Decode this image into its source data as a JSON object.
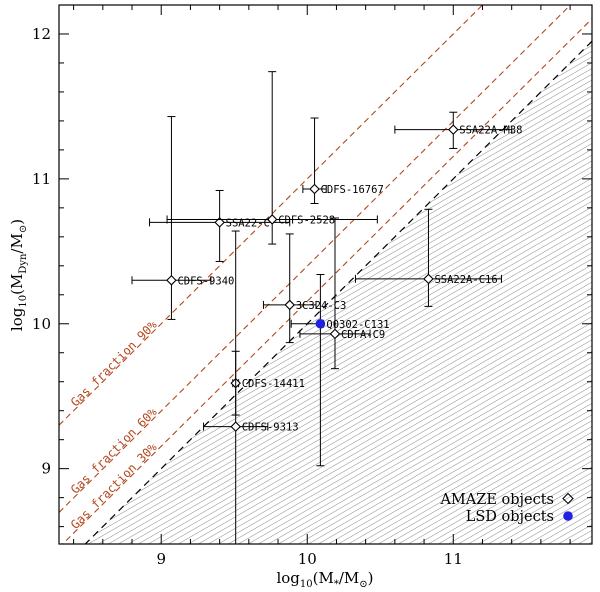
{
  "chart_data": {
    "type": "scatter",
    "xlabel": "log10(M*/M⊙)",
    "ylabel": "log10(MDyn/M⊙)",
    "xlim": [
      8.3,
      11.95
    ],
    "ylim": [
      8.48,
      12.2
    ],
    "x_ticks": [
      9,
      10,
      11
    ],
    "y_ticks": [
      9,
      10,
      11,
      12
    ],
    "x_minor_step": 0.2,
    "y_minor_step": 0.2,
    "unity_line": {
      "slope": 1,
      "intercept": 0,
      "style": "dashed",
      "color": "#000000",
      "shaded_below": true
    },
    "gas_fraction_lines": [
      {
        "label": "Gas fraction 90%",
        "fraction": 0.9,
        "color": "#b4471e"
      },
      {
        "label": "Gas fraction 60%",
        "fraction": 0.6,
        "color": "#b4471e"
      },
      {
        "label": "Gas fraction 30%",
        "fraction": 0.3,
        "color": "#b4471e"
      }
    ],
    "series": [
      {
        "name": "AMAZE objects",
        "marker": "diamond",
        "color": "#000000",
        "points": [
          {
            "label": "SSA22A-M38",
            "x": 11.0,
            "y": 11.34,
            "xerr": [
              0.4,
              0.4
            ],
            "yerr": [
              0.13,
              0.12
            ]
          },
          {
            "label": "CDFS-16767",
            "x": 10.05,
            "y": 10.93,
            "xerr": [
              0.08,
              0.08
            ],
            "yerr": [
              0.1,
              0.49
            ]
          },
          {
            "label": "SSA22-C",
            "x": 9.4,
            "y": 10.7,
            "xerr": [
              0.48,
              0.48
            ],
            "yerr": [
              0.27,
              0.22
            ]
          },
          {
            "label": "CDFS-2528",
            "x": 9.76,
            "y": 10.72,
            "xerr": [
              0.72,
              0.72
            ],
            "yerr": [
              0.17,
              1.02
            ]
          },
          {
            "label": "CDFS-9340",
            "x": 9.07,
            "y": 10.3,
            "xerr": [
              0.27,
              0.27
            ],
            "yerr": [
              0.27,
              1.13
            ]
          },
          {
            "label": "SSA22A-C16",
            "x": 10.83,
            "y": 10.31,
            "xerr": [
              0.5,
              0.5
            ],
            "yerr": [
              0.19,
              0.48
            ]
          },
          {
            "label": "3C324-C3",
            "x": 9.88,
            "y": 10.13,
            "xerr": [
              0.18,
              0.18
            ],
            "yerr": [
              0.26,
              0.49
            ]
          },
          {
            "label": "CDFA-C9",
            "x": 10.19,
            "y": 9.93,
            "xerr": [
              0.24,
              0.24
            ],
            "yerr": [
              0.24,
              0.8
            ]
          },
          {
            "label": "CDFS-14411",
            "x": 9.51,
            "y": 9.59,
            "xerr": [
              0.02,
              0.02
            ],
            "yerr": [
              0.22,
              0.22
            ]
          },
          {
            "label": "CDFS-9313",
            "x": 9.51,
            "y": 9.29,
            "xerr": [
              0.22,
              0.22
            ],
            "yerr": [
              0.81,
              1.35
            ]
          }
        ]
      },
      {
        "name": "LSD objects",
        "marker": "filled-circle",
        "color": "#1f1fe6",
        "points": [
          {
            "label": "Q0302-C131",
            "x": 10.09,
            "y": 10.0,
            "xerr": [
              0.2,
              0.02
            ],
            "yerr": [
              0.98,
              0.34
            ]
          }
        ]
      }
    ],
    "legend": {
      "position": "bottom-right",
      "entries": [
        "AMAZE objects",
        "LSD objects"
      ]
    }
  }
}
